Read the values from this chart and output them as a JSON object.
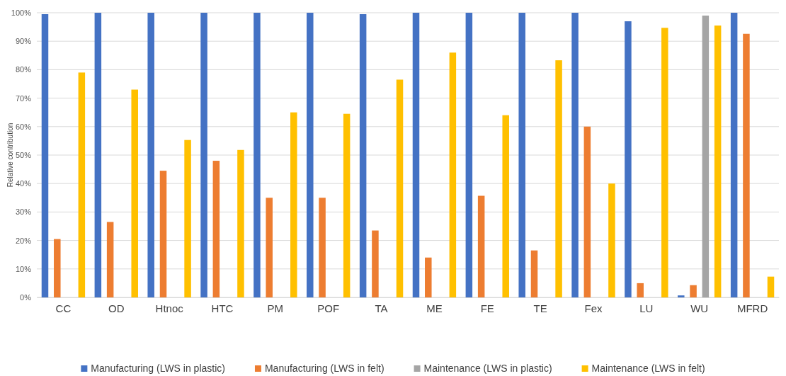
{
  "chart_data": {
    "type": "bar",
    "ylabel": "Relative contribution",
    "categories": [
      "CC",
      "OD",
      "Htnoc",
      "HTC",
      "PM",
      "POF",
      "TA",
      "ME",
      "FE",
      "TE",
      "Fex",
      "LU",
      "WU",
      "MFRD"
    ],
    "series": [
      {
        "name": "Manufacturing (LWS in plastic)",
        "color": "#4472c4",
        "values": [
          99.5,
          100,
          100,
          100,
          100,
          100,
          99.5,
          100,
          100,
          100,
          100,
          97,
          0.7,
          100
        ]
      },
      {
        "name": "Manufacturing (LWS in felt)",
        "color": "#ed7d31",
        "values": [
          20.5,
          26.5,
          44.5,
          48,
          35,
          35,
          23.5,
          14,
          35.7,
          16.5,
          60,
          5,
          4.3,
          92.6
        ]
      },
      {
        "name": "Maintenance (LWS in plastic)",
        "color": "#a5a5a5",
        "values": [
          0,
          0,
          0,
          0,
          0,
          0,
          0,
          0,
          0,
          0,
          0,
          0,
          99,
          0
        ]
      },
      {
        "name": "Maintenance (LWS in felt)",
        "color": "#ffc000",
        "values": [
          79,
          73,
          55.3,
          51.8,
          65,
          64.5,
          76.5,
          86,
          64,
          83.3,
          40,
          94.7,
          95.5,
          7.3
        ]
      }
    ],
    "ylim": [
      0,
      100
    ],
    "yticks": [
      {
        "value": 0,
        "label": "0%"
      },
      {
        "value": 10,
        "label": "10%"
      },
      {
        "value": 20,
        "label": "20%"
      },
      {
        "value": 30,
        "label": "30%"
      },
      {
        "value": 40,
        "label": "40%"
      },
      {
        "value": 50,
        "label": "50%"
      },
      {
        "value": 60,
        "label": "60%"
      },
      {
        "value": 70,
        "label": "70%"
      },
      {
        "value": 80,
        "label": "80%"
      },
      {
        "value": 90,
        "label": "90%"
      },
      {
        "value": 100,
        "label": "100%"
      }
    ],
    "grid": "y",
    "legend": "bottom"
  }
}
